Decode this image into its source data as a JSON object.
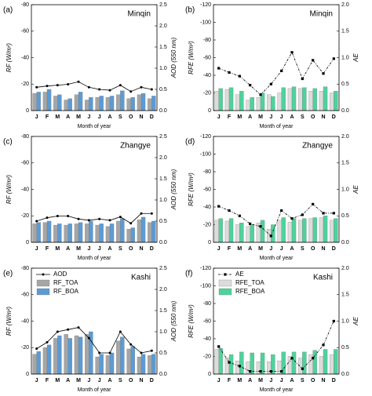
{
  "chart_data": [
    {
      "type": "bar",
      "panel": "(a)",
      "title": "Minqin",
      "x_label": "Month of year",
      "y_label": "RF (W/m²)",
      "y2_label": "AOD (550 nm)",
      "categories": [
        "J",
        "F",
        "M",
        "A",
        "M",
        "J",
        "J",
        "A",
        "S",
        "O",
        "N",
        "D"
      ],
      "ylim": [
        0,
        -80
      ],
      "yticks": [
        -80,
        -60,
        -40,
        -20,
        0
      ],
      "y2lim": [
        0,
        2.5
      ],
      "y2ticks": [
        {
          "value": 0,
          "label": "0.0"
        },
        {
          "value": 0.5,
          "label": "0.5"
        },
        {
          "value": 1,
          "label": "1.0"
        },
        {
          "value": 1.5,
          "label": "1.5"
        },
        {
          "value": 2,
          "label": "2.0"
        },
        {
          "value": 2.5,
          "label": "2.5"
        }
      ],
      "series": [
        {
          "color": "#a6a6a6",
          "values": [
            -13,
            -14,
            -11,
            -8,
            -12,
            -8,
            -10,
            -10,
            -12,
            -9,
            -12,
            -9
          ]
        },
        {
          "color": "#5b9bd5",
          "values": [
            -14,
            -16,
            -12,
            -9,
            -14,
            -10,
            -11,
            -11,
            -15,
            -10,
            -13,
            -11
          ]
        },
        {
          "color": "#000000",
          "axis": "y2",
          "marker": "circle",
          "dash": "solid",
          "values": [
            0.55,
            0.58,
            0.6,
            0.62,
            0.68,
            0.55,
            0.5,
            0.48,
            0.6,
            0.45,
            0.55,
            0.5
          ]
        }
      ]
    },
    {
      "type": "bar",
      "panel": "(b)",
      "title": "Minqin",
      "x_label": "Month of year",
      "y_label": "RFE (W/m²)",
      "y2_label": "AE",
      "categories": [
        "J",
        "F",
        "M",
        "A",
        "M",
        "J",
        "J",
        "A",
        "S",
        "O",
        "N",
        "D"
      ],
      "ylim": [
        0,
        -120
      ],
      "yticks": [
        -120,
        -100,
        -80,
        -60,
        -40,
        -20,
        0
      ],
      "y2lim": [
        0,
        2
      ],
      "y2ticks": [
        {
          "value": 0,
          "label": "0.0"
        },
        {
          "value": 0.5,
          "label": "0.5"
        },
        {
          "value": 1,
          "label": "1.0"
        },
        {
          "value": 1.5,
          "label": "1.5"
        },
        {
          "value": 2,
          "label": "2.0"
        }
      ],
      "series": [
        {
          "color": "#dcdcdc",
          "values": [
            -22,
            -24,
            -18,
            -12,
            -15,
            -18,
            -20,
            -25,
            -25,
            -22,
            -22,
            -20
          ]
        },
        {
          "color": "#4ed29b",
          "values": [
            -25,
            -26,
            -22,
            -15,
            -20,
            -16,
            -26,
            -27,
            -26,
            -25,
            -27,
            -22
          ]
        },
        {
          "color": "#000000",
          "axis": "y2",
          "marker": "square",
          "dash": "dashdot",
          "values": [
            0.8,
            0.72,
            0.65,
            0.48,
            0.3,
            0.5,
            0.75,
            1.1,
            0.6,
            0.95,
            0.7,
            0.98
          ]
        }
      ]
    },
    {
      "type": "bar",
      "panel": "(c)",
      "title": "Zhangye",
      "x_label": "Month of year",
      "y_label": "RF (W/m²)",
      "y2_label": "AOD (550 nm)",
      "categories": [
        "J",
        "F",
        "M",
        "A",
        "M",
        "J",
        "J",
        "A",
        "S",
        "O",
        "N",
        "D"
      ],
      "ylim": [
        0,
        -80
      ],
      "yticks": [
        -80,
        -60,
        -40,
        -20,
        0
      ],
      "y2lim": [
        0,
        2.5
      ],
      "y2ticks": [
        {
          "value": 0,
          "label": "0.0"
        },
        {
          "value": 0.5,
          "label": "0.5"
        },
        {
          "value": 1,
          "label": "1.0"
        },
        {
          "value": 1.5,
          "label": "1.5"
        },
        {
          "value": 2,
          "label": "2.0"
        },
        {
          "value": 2.5,
          "label": "2.5"
        }
      ],
      "series": [
        {
          "color": "#a6a6a6",
          "values": [
            -14,
            -15,
            -13,
            -13,
            -14,
            -14,
            -13,
            -12,
            -16,
            -10,
            -17,
            -15
          ]
        },
        {
          "color": "#5b9bd5",
          "values": [
            -15,
            -16,
            -14,
            -14,
            -15,
            -16,
            -14,
            -14,
            -18,
            -11,
            -19,
            -16
          ]
        },
        {
          "color": "#000000",
          "axis": "y2",
          "marker": "circle",
          "dash": "solid",
          "values": [
            0.5,
            0.58,
            0.62,
            0.62,
            0.55,
            0.52,
            0.55,
            0.52,
            0.6,
            0.45,
            0.68,
            0.68
          ]
        }
      ]
    },
    {
      "type": "bar",
      "panel": "(d)",
      "title": "Zhangye",
      "x_label": "Month of year",
      "y_label": "RFE (W/m²)",
      "y2_label": "AE",
      "categories": [
        "J",
        "F",
        "M",
        "A",
        "M",
        "J",
        "J",
        "A",
        "S",
        "O",
        "N",
        "D"
      ],
      "ylim": [
        0,
        -120
      ],
      "yticks": [
        -120,
        -100,
        -80,
        -60,
        -40,
        -20,
        0
      ],
      "y2lim": [
        0,
        2
      ],
      "y2ticks": [
        {
          "value": 0,
          "label": "0.0"
        },
        {
          "value": 0.5,
          "label": "0.5"
        },
        {
          "value": 1,
          "label": "1.0"
        },
        {
          "value": 1.5,
          "label": "1.5"
        },
        {
          "value": 2,
          "label": "2.0"
        }
      ],
      "series": [
        {
          "color": "#dcdcdc",
          "values": [
            -25,
            -24,
            -20,
            -18,
            -22,
            -15,
            -25,
            -23,
            -25,
            -27,
            -28,
            -25
          ]
        },
        {
          "color": "#4ed29b",
          "values": [
            -27,
            -27,
            -22,
            -20,
            -25,
            -20,
            -28,
            -27,
            -27,
            -28,
            -30,
            -27
          ]
        },
        {
          "color": "#000000",
          "axis": "y2",
          "marker": "square",
          "dash": "dashdot",
          "values": [
            0.68,
            0.6,
            0.5,
            0.35,
            0.3,
            0.12,
            0.6,
            0.45,
            0.52,
            0.72,
            0.55,
            0.55
          ]
        }
      ]
    },
    {
      "type": "bar",
      "panel": "(e)",
      "title": "Kashi",
      "x_label": "Month of year",
      "y_label": "RF (W/m²)",
      "y2_label": "AOD (550 nm)",
      "legend": "upper left",
      "categories": [
        "J",
        "F",
        "M",
        "A",
        "M",
        "J",
        "J",
        "A",
        "S",
        "O",
        "N",
        "D"
      ],
      "ylim": [
        0,
        -80
      ],
      "yticks": [
        -80,
        -60,
        -40,
        -20,
        0
      ],
      "y2lim": [
        0,
        2.5
      ],
      "y2ticks": [
        {
          "value": 0,
          "label": "0.0"
        },
        {
          "value": 0.5,
          "label": "0.5"
        },
        {
          "value": 1,
          "label": "1.0"
        },
        {
          "value": 1.5,
          "label": "1.5"
        },
        {
          "value": 2,
          "label": "2.0"
        },
        {
          "value": 2.5,
          "label": "2.5"
        }
      ],
      "series": [
        {
          "name": "RF_TOA",
          "color": "#a6a6a6",
          "values": [
            -15,
            -20,
            -27,
            -30,
            -29,
            -30,
            -13,
            -14,
            -25,
            -19,
            -13,
            -14
          ]
        },
        {
          "name": "RF_BOA",
          "color": "#5b9bd5",
          "values": [
            -17,
            -22,
            -29,
            -27,
            -28,
            -32,
            -15,
            -16,
            -28,
            -21,
            -15,
            -15
          ]
        },
        {
          "name": "AOD",
          "color": "#000000",
          "axis": "y2",
          "marker": "circle",
          "dash": "solid",
          "values": [
            0.6,
            0.75,
            1.0,
            1.05,
            1.1,
            0.85,
            0.5,
            0.5,
            1.0,
            0.7,
            0.5,
            0.55
          ]
        }
      ]
    },
    {
      "type": "bar",
      "panel": "(f)",
      "title": "Kashi",
      "x_label": "Month of year",
      "y_label": "RFE (W/m²)",
      "y2_label": "AE",
      "legend": "upper left",
      "categories": [
        "J",
        "F",
        "M",
        "A",
        "M",
        "J",
        "J",
        "A",
        "S",
        "O",
        "N",
        "D"
      ],
      "ylim": [
        0,
        -120
      ],
      "yticks": [
        -120,
        -100,
        -80,
        -60,
        -40,
        -20,
        0
      ],
      "y2lim": [
        0,
        2
      ],
      "y2ticks": [
        {
          "value": 0,
          "label": "0.0"
        },
        {
          "value": 0.5,
          "label": "0.5"
        },
        {
          "value": 1,
          "label": "1.0"
        },
        {
          "value": 1.5,
          "label": "1.5"
        },
        {
          "value": 2,
          "label": "2.0"
        }
      ],
      "series": [
        {
          "name": "RFE_TOA",
          "color": "#dcdcdc",
          "values": [
            -28,
            -18,
            -15,
            -14,
            -14,
            -14,
            -15,
            -20,
            -18,
            -22,
            -20,
            -22
          ]
        },
        {
          "name": "RFE_BOA",
          "color": "#4ed29b",
          "values": [
            -29,
            -22,
            -25,
            -24,
            -24,
            -22,
            -25,
            -25,
            -25,
            -27,
            -28,
            -28
          ]
        },
        {
          "name": "AE",
          "color": "#000000",
          "axis": "y2",
          "marker": "square",
          "dash": "dashdot",
          "values": [
            0.52,
            0.22,
            0.15,
            0.05,
            0.05,
            0.05,
            0.05,
            0.3,
            0.1,
            0.3,
            0.55,
            1.0
          ]
        }
      ]
    }
  ]
}
